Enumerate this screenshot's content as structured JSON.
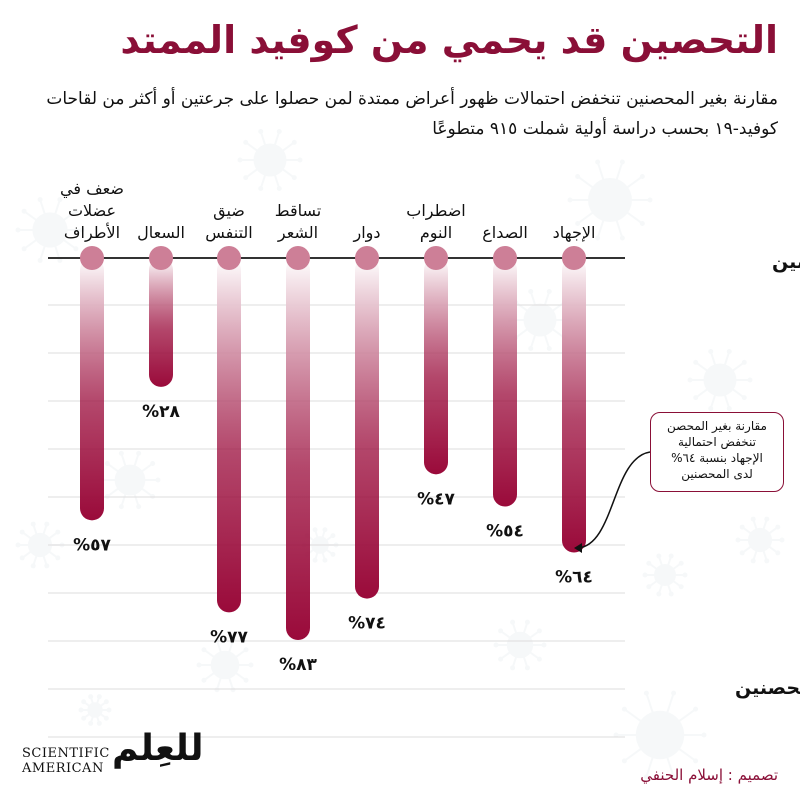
{
  "title": "التحصين قد يحمي من كوفيد الممتد",
  "subtitle": "مقارنة بغير المحصنين تنخفض احتمالات ظهور أعراض ممتدة لمن حصلوا على جرعتين أو أكثر من لقاحات كوفيد-١٩ بحسب دراسة أولية شملت ٩١٥ متطوعًا",
  "chart_data": {
    "type": "bar",
    "title": "التحصين قد يحمي من كوفيد الممتد",
    "top_row_label": "غير المحصنين",
    "bottom_row_label": "المحصنين",
    "categories": [
      "الإجهاد",
      "الصداع",
      "اضطراب النوم",
      "دوار",
      "تساقط الشعر",
      "ضيق التنفس",
      "السعال",
      "ضعف في عضلات الأطراف"
    ],
    "category_lines": [
      [
        "الإجهاد"
      ],
      [
        "الصداع"
      ],
      [
        "اضطراب",
        "النوم"
      ],
      [
        "دوار"
      ],
      [
        "تساقط",
        "الشعر"
      ],
      [
        "ضيق",
        "التنفس"
      ],
      [
        "السعال"
      ],
      [
        "ضعف في",
        "عضلات",
        "الأطراف"
      ]
    ],
    "values": [
      64,
      54,
      47,
      74,
      83,
      77,
      28,
      57
    ],
    "value_labels": [
      "%٦٤",
      "%٥٤",
      "%٤٧",
      "%٧٤",
      "%٨٣",
      "%٧٧",
      "%٢٨",
      "%٥٧"
    ],
    "ylim": [
      0,
      100
    ],
    "unit": "%",
    "colors": {
      "bar_dark": "#9a0a3a",
      "bar_light": "#ffffff",
      "dot": "#cd7f97",
      "title": "#8a0f37",
      "grid": "#dddddd"
    }
  },
  "annotation": {
    "lines": [
      "مقارنة بغير المحصن",
      "تنخفض احتمالية",
      "الإجهاد بنسبة ٦٤%",
      "لدى المحصنين"
    ]
  },
  "logo": {
    "english_line1": "SCIENTIFIC",
    "english_line2": "AMERICAN",
    "arabic": "للعِلم"
  },
  "credit": "تصميم : إسلام الحنفي"
}
